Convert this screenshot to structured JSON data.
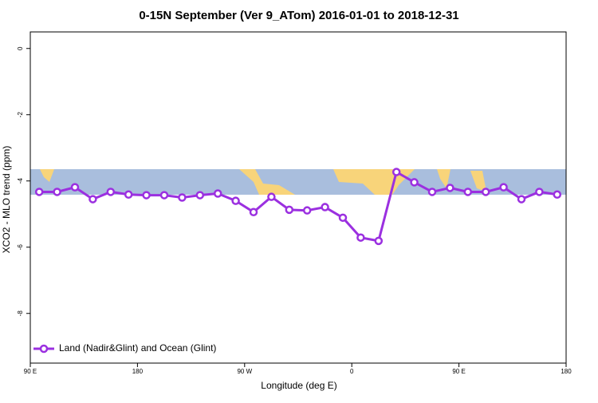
{
  "chart_data": {
    "type": "line",
    "title": "0-15N September (Ver 9_ATom)   2016-01-01 to 2018-12-31",
    "x_label": "Longitude (deg E)",
    "y_label": "XCO2 - MLO trend (ppm)",
    "x": [
      97.5,
      112.5,
      127.5,
      142.5,
      157.5,
      172.5,
      187.5,
      202.5,
      217.5,
      232.5,
      247.5,
      262.5,
      277.5,
      292.5,
      307.5,
      322.5,
      337.5,
      352.5,
      367.5,
      382.5,
      397.5,
      412.5,
      427.5,
      442.5,
      457.5,
      472.5,
      487.5,
      502.5,
      517.5,
      532.5
    ],
    "series": [
      {
        "name": "Land (Nadir&Glint) and Ocean (Glint)",
        "color": "#9b30e0",
        "values": [
          -4.33,
          -4.33,
          -4.19,
          -4.55,
          -4.33,
          -4.41,
          -4.43,
          -4.43,
          -4.5,
          -4.43,
          -4.38,
          -4.6,
          -4.94,
          -4.48,
          -4.87,
          -4.89,
          -4.79,
          -5.11,
          -5.71,
          -5.81,
          -3.73,
          -4.04,
          -4.33,
          -4.21,
          -4.33,
          -4.33,
          -4.19,
          -4.55,
          -4.33,
          -4.41
        ]
      }
    ],
    "xlim": [
      90,
      540
    ],
    "ylim": [
      -9.5,
      0.5
    ],
    "xticks": [
      {
        "value": 90,
        "label": "90 E"
      },
      {
        "value": 180,
        "label": "180"
      },
      {
        "value": 270,
        "label": "90 W"
      },
      {
        "value": 360,
        "label": "0"
      },
      {
        "value": 450,
        "label": "90 E"
      },
      {
        "value": 540,
        "label": "180"
      }
    ],
    "yticks": [
      0,
      -2,
      -4,
      -6,
      -8
    ],
    "legend_position": "lower left"
  }
}
